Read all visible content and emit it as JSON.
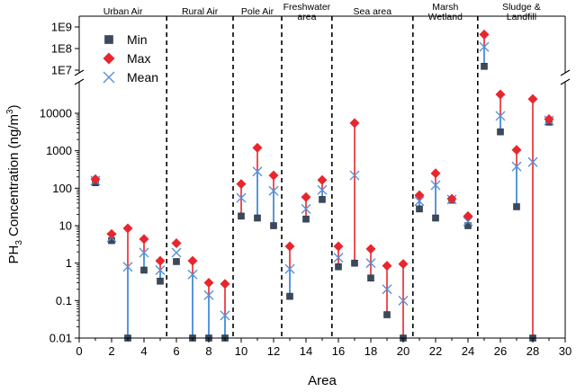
{
  "chart_data": {
    "type": "scatter",
    "title": "",
    "xlabel": "Area",
    "ylabel": "PH3 Concentration (ng/m3)",
    "ylabel_parts": {
      "main": "PH",
      "sub": "3",
      "mid": " Concentration (ng/m",
      "sup": "3",
      "end": ")"
    },
    "xlim": [
      0,
      30
    ],
    "x_ticks": [
      "0",
      "2",
      "4",
      "6",
      "8",
      "10",
      "12",
      "14",
      "16",
      "18",
      "20",
      "22",
      "24",
      "26",
      "28",
      "30"
    ],
    "y_scale": "log",
    "y_axis_break": {
      "lower_max": 50000,
      "upper_min": 10000000
    },
    "y_ticks_lower": [
      "0.01",
      "0.1",
      "1",
      "10",
      "100",
      "1000",
      "10000"
    ],
    "y_ticks_upper": [
      "1E7",
      "1E8",
      "1E9"
    ],
    "legend": {
      "position": "top-left",
      "entries": [
        {
          "key": "min",
          "label": "Min",
          "marker": "square",
          "color": "#3a4a5c"
        },
        {
          "key": "max",
          "label": "Max",
          "marker": "diamond",
          "color": "#e8262e"
        },
        {
          "key": "mean",
          "label": "Mean",
          "marker": "x",
          "color": "#5b8fd6"
        }
      ]
    },
    "regions": [
      {
        "label": "Urban Air",
        "x_start": 0,
        "x_end": 5.4
      },
      {
        "label": "Rural Air",
        "x_start": 5.4,
        "x_end": 9.5
      },
      {
        "label": "Pole Air",
        "x_start": 9.5,
        "x_end": 12.5
      },
      {
        "label": "Freshwater area",
        "lines": [
          "Freshwater",
          "area"
        ],
        "x_start": 12.5,
        "x_end": 15.6
      },
      {
        "label": "Sea area",
        "x_start": 15.6,
        "x_end": 20.6
      },
      {
        "label": "Marsh Wetland",
        "lines": [
          "Marsh",
          "Wetland"
        ],
        "x_start": 20.6,
        "x_end": 24.6
      },
      {
        "label": "Sludge & Landfill",
        "lines": [
          "Sludge &",
          "Landfill"
        ],
        "x_start": 24.6,
        "x_end": 30
      }
    ],
    "points": [
      {
        "x": 1,
        "min": 140,
        "max": 175,
        "mean": 160,
        "line": "none"
      },
      {
        "x": 2,
        "min": 4,
        "max": 6,
        "mean": 4.8,
        "line": "none"
      },
      {
        "x": 3,
        "min": 0.01,
        "max": 8.5,
        "mean": 0.8,
        "line": "split"
      },
      {
        "x": 4,
        "min": 0.65,
        "max": 4.4,
        "mean": 1.9,
        "line": "split"
      },
      {
        "x": 5,
        "min": 0.33,
        "max": 1.15,
        "mean": 0.65,
        "line": "split"
      },
      {
        "x": 6,
        "min": 1.1,
        "max": 3.4,
        "mean": 1.9,
        "line": "none"
      },
      {
        "x": 7,
        "min": 0.01,
        "max": 1.15,
        "mean": 0.5,
        "line": "split"
      },
      {
        "x": 8,
        "min": 0.01,
        "max": 0.3,
        "mean": 0.14,
        "line": "split"
      },
      {
        "x": 9,
        "min": 0.01,
        "max": 0.28,
        "mean": 0.04,
        "line": "split"
      },
      {
        "x": 10,
        "min": 18,
        "max": 130,
        "mean": 55,
        "line": "red"
      },
      {
        "x": 11,
        "min": 16,
        "max": 1200,
        "mean": 280,
        "line": "split"
      },
      {
        "x": 12,
        "min": 10,
        "max": 220,
        "mean": 85,
        "line": "split"
      },
      {
        "x": 13,
        "min": 0.13,
        "max": 2.8,
        "mean": 0.7,
        "line": "split"
      },
      {
        "x": 14,
        "min": 15,
        "max": 58,
        "mean": 28,
        "line": "red"
      },
      {
        "x": 15,
        "min": 50,
        "max": 165,
        "mean": 90,
        "line": "split"
      },
      {
        "x": 16,
        "min": 0.8,
        "max": 2.8,
        "mean": 1.4,
        "line": "red"
      },
      {
        "x": 17,
        "min": 1,
        "max": 5500,
        "mean": 220,
        "line": "red"
      },
      {
        "x": 18,
        "min": 0.4,
        "max": 2.4,
        "mean": 1,
        "line": "red"
      },
      {
        "x": 19,
        "min": 0.042,
        "max": 0.85,
        "mean": 0.2,
        "line": "red"
      },
      {
        "x": 20,
        "min": 0.01,
        "max": 0.95,
        "mean": 0.1,
        "line": "red"
      },
      {
        "x": 21,
        "min": 28,
        "max": 65,
        "mean": 45,
        "line": "split"
      },
      {
        "x": 22,
        "min": 16,
        "max": 250,
        "mean": 120,
        "line": "split"
      },
      {
        "x": 23,
        "min": 48,
        "max": 52,
        "mean": 50,
        "line": "none"
      },
      {
        "x": 24,
        "min": 10,
        "max": 18,
        "mean": 13,
        "line": "split"
      },
      {
        "x": 25,
        "min": 15000000,
        "max": 450000000,
        "mean": 120000000,
        "line": "split"
      },
      {
        "x": 26,
        "min": 3200,
        "max": 32000,
        "mean": 8500,
        "line": "split"
      },
      {
        "x": 27,
        "min": 32,
        "max": 1050,
        "mean": 380,
        "line": "split"
      },
      {
        "x": 28,
        "min": 0.01,
        "max": 24000,
        "mean": 500,
        "line": "red"
      },
      {
        "x": 29,
        "min": 5800,
        "max": 7000,
        "mean": 6400,
        "line": "none"
      }
    ]
  }
}
